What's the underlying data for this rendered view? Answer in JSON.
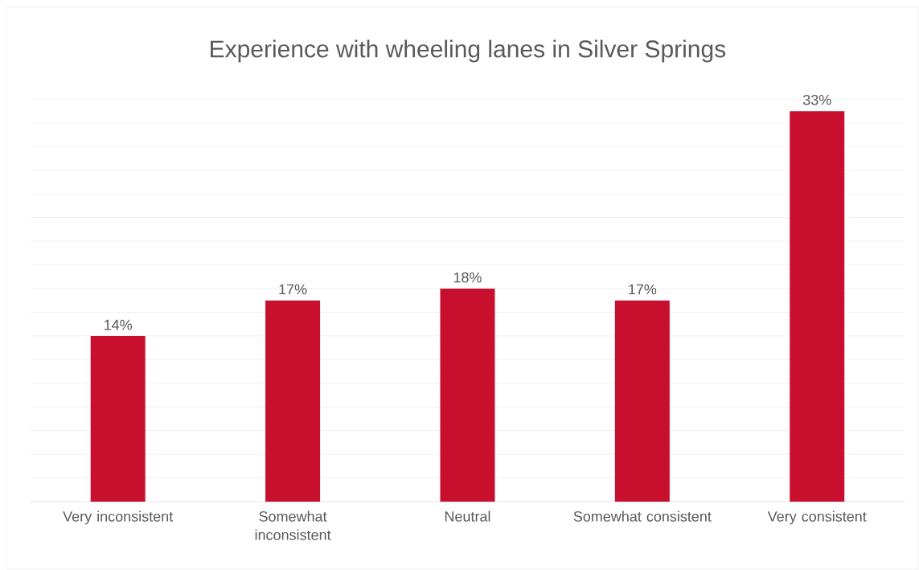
{
  "chart_data": {
    "type": "bar",
    "title": "Experience with wheeling lanes in Silver Springs",
    "categories": [
      "Very inconsistent",
      "Somewhat inconsistent",
      "Neutral",
      "Somewhat consistent",
      "Very consistent"
    ],
    "values": [
      14,
      17,
      18,
      17,
      33
    ],
    "value_labels": [
      "14%",
      "17%",
      "18%",
      "17%",
      "33%"
    ],
    "color": "#c8102e",
    "grid": "y",
    "tick_labels": "x"
  }
}
